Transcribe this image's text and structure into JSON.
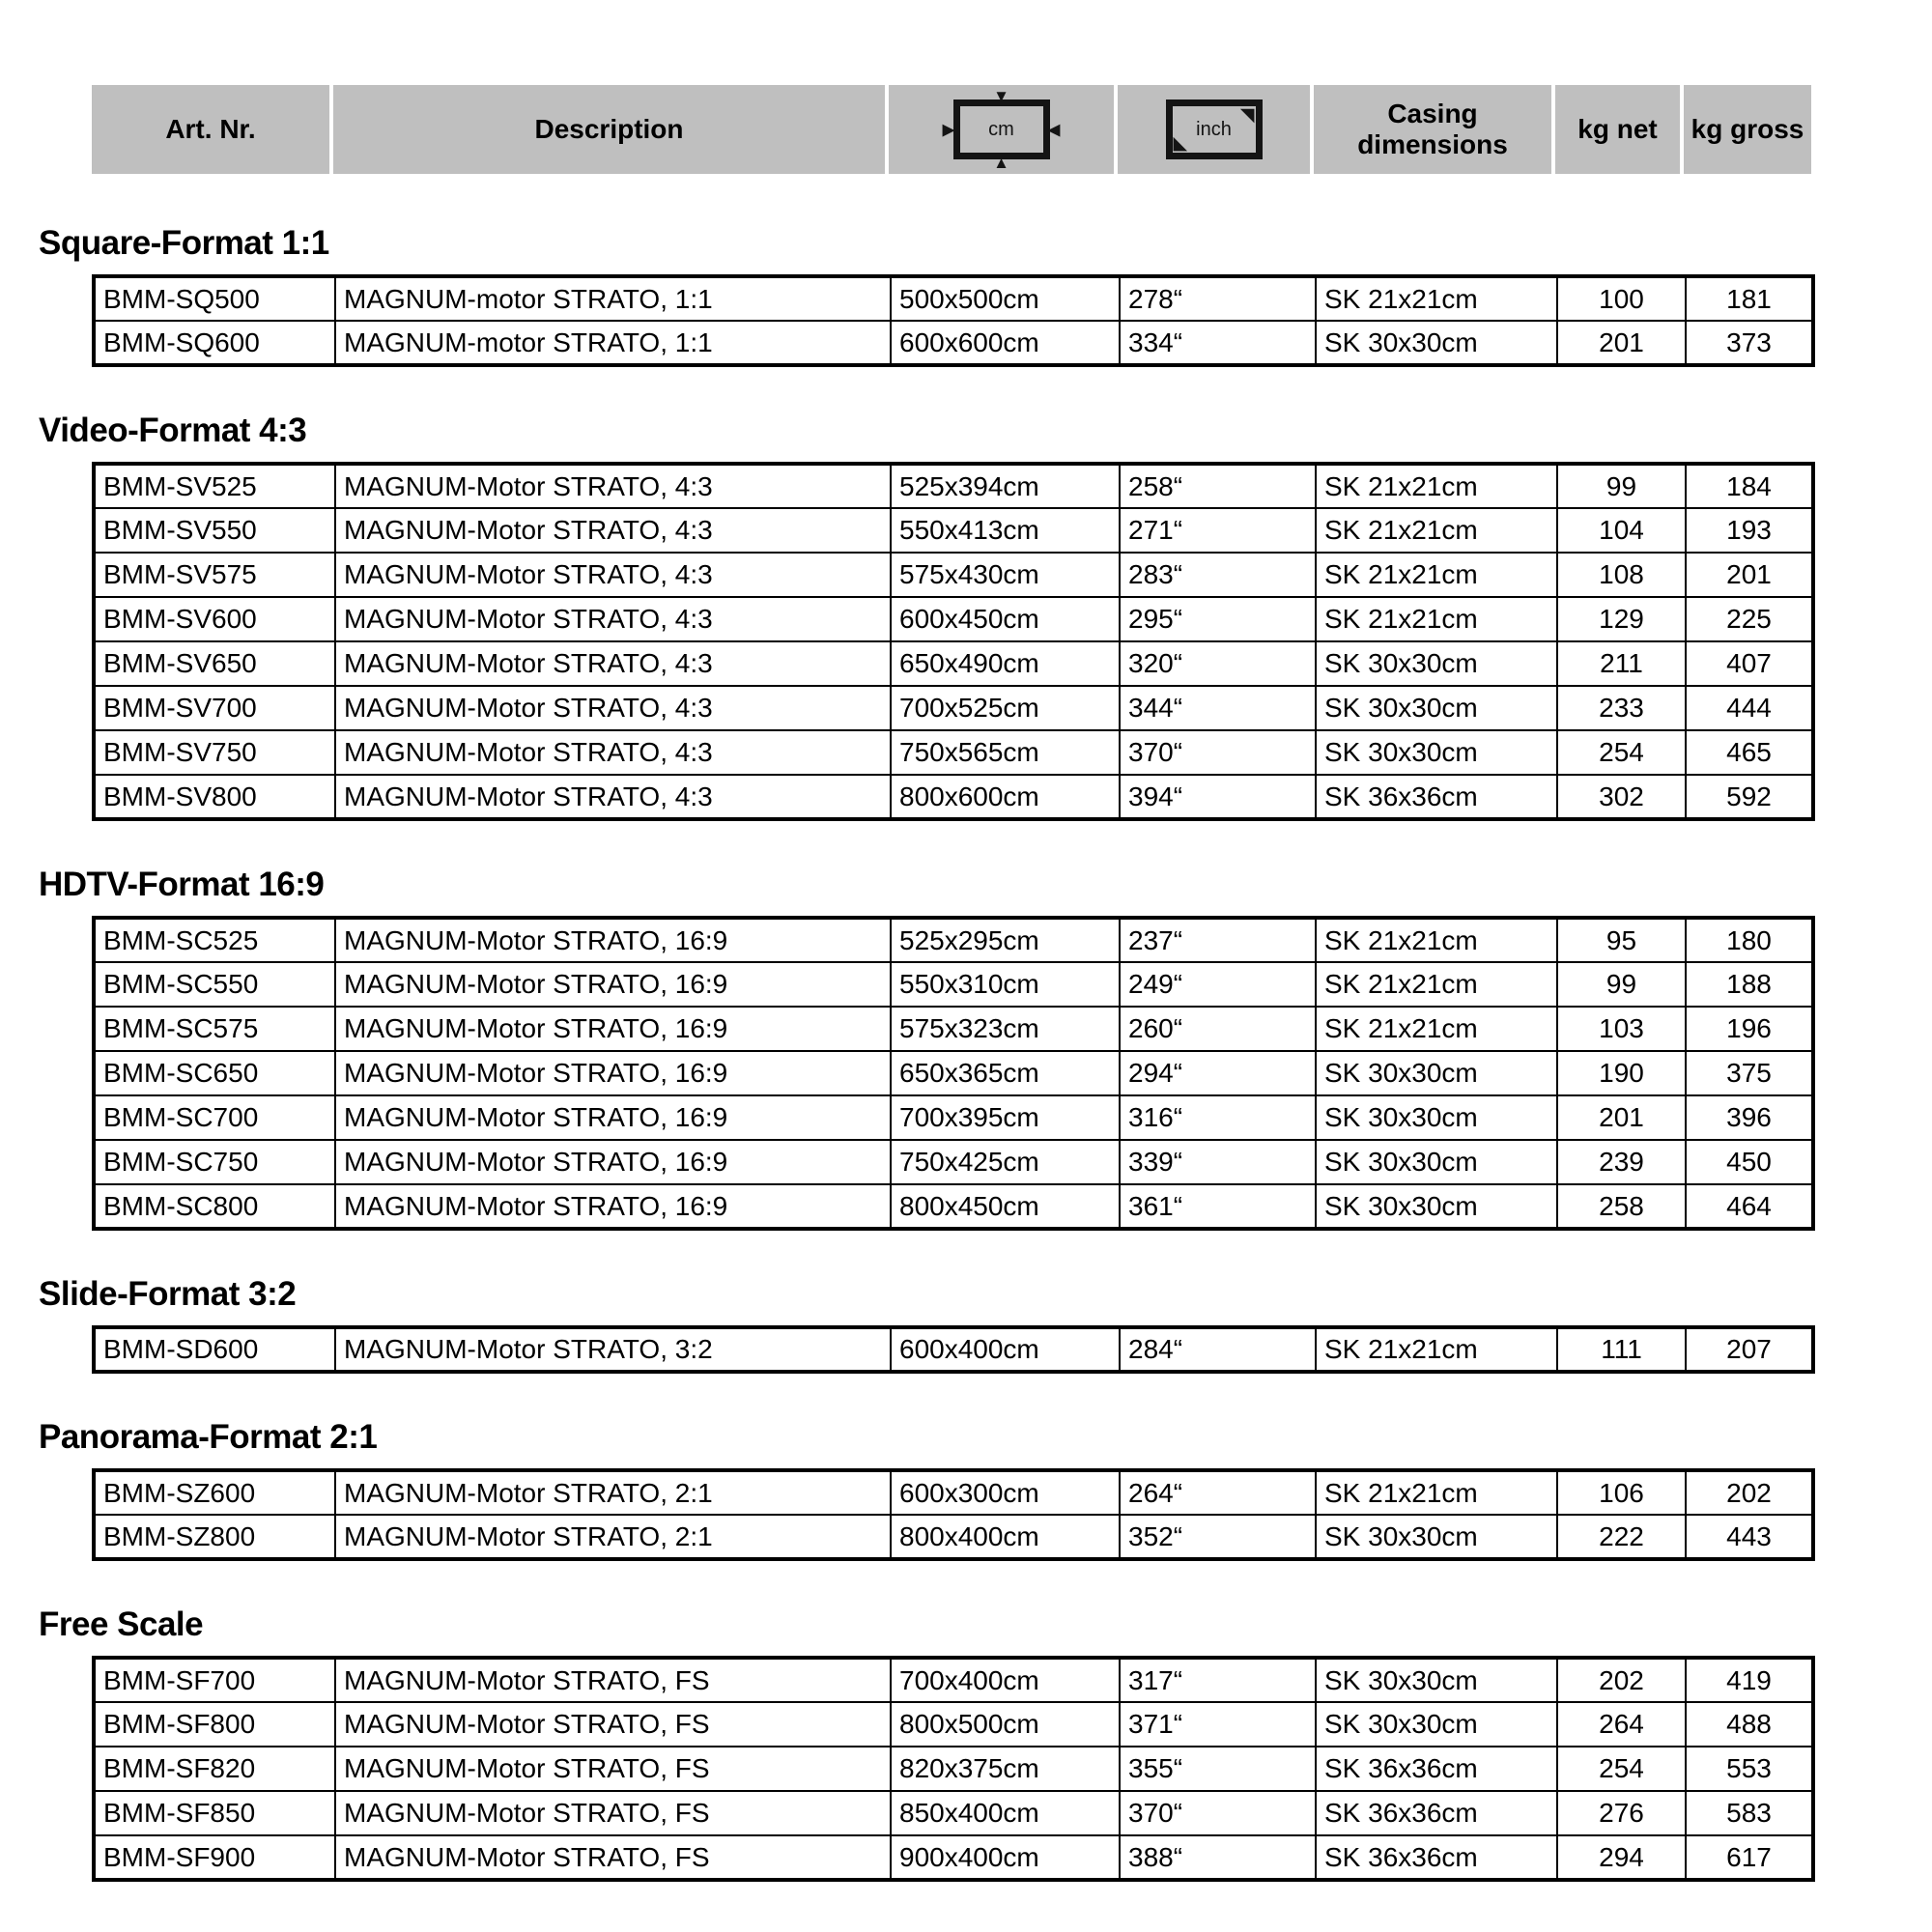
{
  "header": {
    "col_art": "Art. Nr.",
    "col_description": "Description",
    "cm_icon_label": "cm",
    "inch_icon_label": "inch",
    "col_casing": "Casing dimensions",
    "col_kg_net": "kg net",
    "col_kg_gross": "kg gross"
  },
  "colors": {
    "header_bg": "#bfbfbf",
    "border": "#000000",
    "text": "#000000"
  },
  "icons": {
    "cm_arrows": [
      "▼",
      "▲",
      "▶",
      "◀"
    ],
    "inch_corners": [
      "◥",
      "◣"
    ]
  },
  "sections": [
    {
      "title": "Square-Format 1:1",
      "rows": [
        [
          "BMM-SQ500",
          "MAGNUM-motor STRATO, 1:1",
          "500x500cm",
          "278“",
          "SK 21x21cm",
          "100",
          "181"
        ],
        [
          "BMM-SQ600",
          "MAGNUM-motor STRATO, 1:1",
          "600x600cm",
          "334“",
          "SK 30x30cm",
          "201",
          "373"
        ]
      ]
    },
    {
      "title": "Video-Format 4:3",
      "rows": [
        [
          "BMM-SV525",
          "MAGNUM-Motor STRATO, 4:3",
          "525x394cm",
          "258“",
          "SK 21x21cm",
          "99",
          "184"
        ],
        [
          "BMM-SV550",
          "MAGNUM-Motor STRATO, 4:3",
          "550x413cm",
          "271“",
          "SK 21x21cm",
          "104",
          "193"
        ],
        [
          "BMM-SV575",
          "MAGNUM-Motor STRATO, 4:3",
          "575x430cm",
          "283“",
          "SK 21x21cm",
          "108",
          "201"
        ],
        [
          "BMM-SV600",
          "MAGNUM-Motor STRATO, 4:3",
          "600x450cm",
          "295“",
          "SK 21x21cm",
          "129",
          "225"
        ],
        [
          "BMM-SV650",
          "MAGNUM-Motor STRATO, 4:3",
          "650x490cm",
          "320“",
          "SK 30x30cm",
          "211",
          "407"
        ],
        [
          "BMM-SV700",
          "MAGNUM-Motor STRATO, 4:3",
          "700x525cm",
          "344“",
          "SK 30x30cm",
          "233",
          "444"
        ],
        [
          "BMM-SV750",
          "MAGNUM-Motor STRATO, 4:3",
          "750x565cm",
          "370“",
          "SK 30x30cm",
          "254",
          "465"
        ],
        [
          "BMM-SV800",
          "MAGNUM-Motor STRATO, 4:3",
          "800x600cm",
          "394“",
          "SK 36x36cm",
          "302",
          "592"
        ]
      ]
    },
    {
      "title": "HDTV-Format 16:9",
      "rows": [
        [
          "BMM-SC525",
          "MAGNUM-Motor STRATO, 16:9",
          "525x295cm",
          "237“",
          "SK 21x21cm",
          "95",
          "180"
        ],
        [
          "BMM-SC550",
          "MAGNUM-Motor STRATO, 16:9",
          "550x310cm",
          "249“",
          "SK 21x21cm",
          "99",
          "188"
        ],
        [
          "BMM-SC575",
          "MAGNUM-Motor STRATO, 16:9",
          "575x323cm",
          "260“",
          "SK 21x21cm",
          "103",
          "196"
        ],
        [
          "BMM-SC650",
          "MAGNUM-Motor STRATO, 16:9",
          "650x365cm",
          "294“",
          "SK 30x30cm",
          "190",
          "375"
        ],
        [
          "BMM-SC700",
          "MAGNUM-Motor STRATO, 16:9",
          "700x395cm",
          "316“",
          "SK 30x30cm",
          "201",
          "396"
        ],
        [
          "BMM-SC750",
          "MAGNUM-Motor STRATO, 16:9",
          "750x425cm",
          "339“",
          "SK 30x30cm",
          "239",
          "450"
        ],
        [
          "BMM-SC800",
          "MAGNUM-Motor STRATO, 16:9",
          "800x450cm",
          "361“",
          "SK 30x30cm",
          "258",
          "464"
        ]
      ]
    },
    {
      "title": "Slide-Format 3:2",
      "rows": [
        [
          "BMM-SD600",
          "MAGNUM-Motor STRATO, 3:2",
          "600x400cm",
          "284“",
          "SK 21x21cm",
          "111",
          "207"
        ]
      ]
    },
    {
      "title": "Panorama-Format 2:1",
      "rows": [
        [
          "BMM-SZ600",
          "MAGNUM-Motor STRATO, 2:1",
          "600x300cm",
          "264“",
          "SK 21x21cm",
          "106",
          "202"
        ],
        [
          "BMM-SZ800",
          "MAGNUM-Motor STRATO, 2:1",
          "800x400cm",
          "352“",
          "SK 30x30cm",
          "222",
          "443"
        ]
      ]
    },
    {
      "title": "Free Scale",
      "rows": [
        [
          "BMM-SF700",
          "MAGNUM-Motor STRATO, FS",
          "700x400cm",
          "317“",
          "SK 30x30cm",
          "202",
          "419"
        ],
        [
          "BMM-SF800",
          "MAGNUM-Motor STRATO, FS",
          "800x500cm",
          "371“",
          "SK 30x30cm",
          "264",
          "488"
        ],
        [
          "BMM-SF820",
          "MAGNUM-Motor STRATO, FS",
          "820x375cm",
          "355“",
          "SK 36x36cm",
          "254",
          "553"
        ],
        [
          "BMM-SF850",
          "MAGNUM-Motor STRATO, FS",
          "850x400cm",
          "370“",
          "SK 36x36cm",
          "276",
          "583"
        ],
        [
          "BMM-SF900",
          "MAGNUM-Motor STRATO, FS",
          "900x400cm",
          "388“",
          "SK 36x36cm",
          "294",
          "617"
        ]
      ]
    }
  ]
}
